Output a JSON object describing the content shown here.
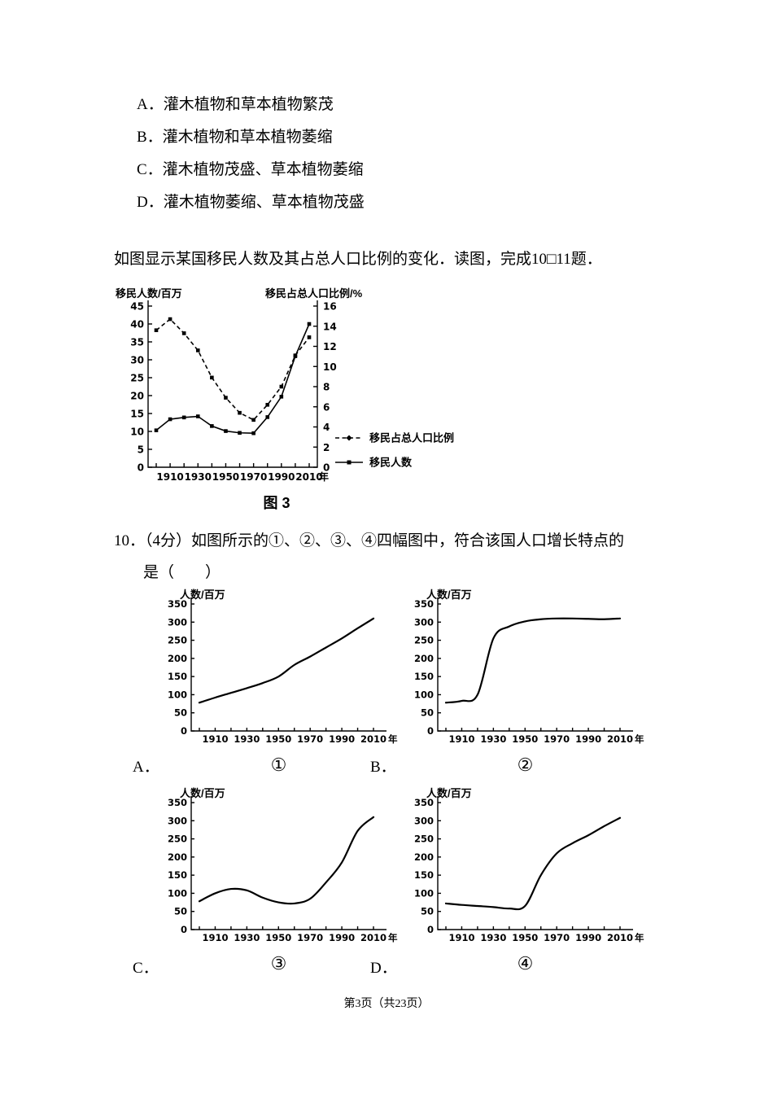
{
  "page": {
    "options": [
      "A．灌木植物和草本植物繁茂",
      "B．灌木植物和草本植物萎缩",
      "C．灌木植物茂盛、草本植物萎缩",
      "D．灌木植物萎缩、草本植物茂盛"
    ],
    "intro": "如图显示某国移民人数及其占总人口比例的变化．读图，完成10□11题．",
    "figure3_caption": "图 3",
    "q10_line1": "10．（4分）如图所示的①、②、③、④四幅图中，符合该国人口增长特点的",
    "q10_line2": "是（　　）",
    "answers": [
      {
        "letter": "A．",
        "caption": "①"
      },
      {
        "letter": "B．",
        "caption": "②"
      },
      {
        "letter": "C．",
        "caption": "③"
      },
      {
        "letter": "D．",
        "caption": "④"
      }
    ],
    "footer": "第3页（共23页）"
  },
  "chart_data": [
    {
      "id": "figure3",
      "type": "line",
      "title": "图 3",
      "x": [
        1900,
        1910,
        1920,
        1930,
        1940,
        1950,
        1960,
        1970,
        1980,
        1990,
        2000,
        2010
      ],
      "x_tick_labels": [
        1910,
        1930,
        1950,
        1970,
        1990,
        2010
      ],
      "x_unit": "年",
      "left_axis": {
        "label": "移民人数/百万",
        "min": 0,
        "max": 45,
        "step": 5
      },
      "right_axis": {
        "label": "移民占总人口比例/%",
        "min": 0,
        "max": 16,
        "step": 2
      },
      "legend_position": "right",
      "series": [
        {
          "name": "移民占总人口比例",
          "axis": "right",
          "line": "dashed",
          "marker": "diamond",
          "values": [
            13.6,
            14.7,
            13.3,
            11.6,
            8.9,
            6.9,
            5.4,
            4.7,
            6.2,
            8.0,
            11.1,
            12.9
          ]
        },
        {
          "name": "移民人数",
          "axis": "left",
          "line": "solid",
          "marker": "square",
          "values": [
            10.3,
            13.4,
            13.9,
            14.2,
            11.5,
            10.1,
            9.6,
            9.5,
            14.0,
            19.7,
            31.0,
            40.0
          ]
        }
      ]
    },
    {
      "id": "chart1",
      "type": "line",
      "caption": "①",
      "ylabel": "人数/百万",
      "ylim": [
        0,
        350
      ],
      "ystep": 50,
      "x_unit": "年",
      "x": [
        1900,
        1910,
        1920,
        1930,
        1940,
        1950,
        1960,
        1970,
        1980,
        1990,
        2000,
        2010
      ],
      "x_tick_labels": [
        1910,
        1930,
        1950,
        1970,
        1990,
        2010
      ],
      "values": [
        78,
        92,
        105,
        118,
        132,
        150,
        182,
        205,
        230,
        255,
        283,
        310
      ]
    },
    {
      "id": "chart2",
      "type": "line",
      "caption": "②",
      "ylabel": "人数/百万",
      "ylim": [
        0,
        350
      ],
      "ystep": 50,
      "x_unit": "年",
      "x": [
        1900,
        1910,
        1920,
        1930,
        1940,
        1950,
        1960,
        1970,
        1980,
        1990,
        2000,
        2010
      ],
      "x_tick_labels": [
        1910,
        1930,
        1950,
        1970,
        1990,
        2010
      ],
      "values": [
        78,
        83,
        100,
        255,
        288,
        302,
        308,
        310,
        310,
        309,
        308,
        310
      ]
    },
    {
      "id": "chart3",
      "type": "line",
      "caption": "③",
      "ylabel": "人数/百万",
      "ylim": [
        0,
        350
      ],
      "ystep": 50,
      "x_unit": "年",
      "x": [
        1900,
        1910,
        1920,
        1930,
        1940,
        1950,
        1960,
        1970,
        1980,
        1990,
        2000,
        2010
      ],
      "x_tick_labels": [
        1910,
        1930,
        1950,
        1970,
        1990,
        2010
      ],
      "values": [
        78,
        100,
        112,
        108,
        88,
        75,
        72,
        85,
        130,
        185,
        272,
        310
      ]
    },
    {
      "id": "chart4",
      "type": "line",
      "caption": "④",
      "ylabel": "人数/百万",
      "ylim": [
        0,
        350
      ],
      "ystep": 50,
      "x_unit": "年",
      "x": [
        1900,
        1910,
        1920,
        1930,
        1940,
        1950,
        1960,
        1970,
        1980,
        1990,
        2000,
        2010
      ],
      "x_tick_labels": [
        1910,
        1930,
        1950,
        1970,
        1990,
        2010
      ],
      "values": [
        72,
        68,
        65,
        62,
        58,
        65,
        150,
        210,
        238,
        260,
        285,
        308
      ]
    }
  ]
}
